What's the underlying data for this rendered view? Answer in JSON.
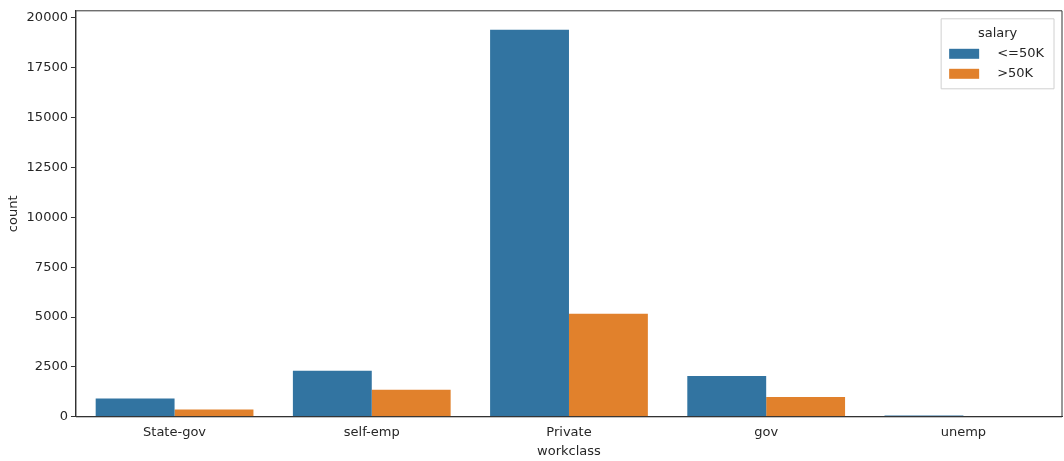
{
  "chart_data": {
    "type": "bar",
    "xlabel": "workclass",
    "ylabel": "count",
    "legend_title": "salary",
    "categories": [
      "State-gov",
      "self-emp",
      "Private",
      "gov",
      "unemp"
    ],
    "series": [
      {
        "name": "<=50K",
        "color": "#3274a1",
        "values": [
          920,
          2310,
          19400,
          2040,
          70
        ]
      },
      {
        "name": ">50K",
        "color": "#e1812c",
        "values": [
          370,
          1360,
          5170,
          990,
          0
        ]
      }
    ],
    "ylim": [
      0,
      20350
    ],
    "yticks": [
      0,
      2500,
      5000,
      7500,
      10000,
      12500,
      15000,
      17500,
      20000
    ],
    "grid": false,
    "legend": "top right"
  }
}
